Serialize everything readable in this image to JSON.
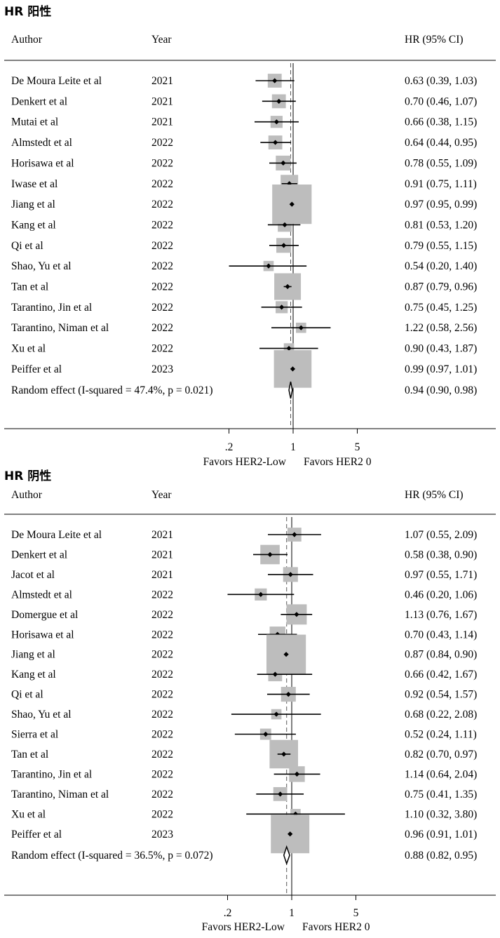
{
  "chart_data": [
    {
      "type": "forest",
      "title": "HR 阳性",
      "col_author": "Author",
      "col_year": "Year",
      "col_hr": "HR (95% CI)",
      "scale": "log",
      "xticks": [
        0.2,
        1,
        5
      ],
      "xtick_labels": [
        ".2",
        "1",
        "5"
      ],
      "favors_left": "Favors HER2-Low",
      "favors_right": "Favors HER2 0",
      "studies": [
        {
          "author": "De Moura Leite et al",
          "year": "2021",
          "hr": 0.63,
          "lo": 0.39,
          "hi": 1.03,
          "ci_text": "0.63 (0.39, 1.03)",
          "weight": 0.3
        },
        {
          "author": "Denkert et al",
          "year": "2021",
          "hr": 0.7,
          "lo": 0.46,
          "hi": 1.07,
          "ci_text": "0.70 (0.46, 1.07)",
          "weight": 0.3
        },
        {
          "author": "Mutai et al",
          "year": "2021",
          "hr": 0.66,
          "lo": 0.38,
          "hi": 1.15,
          "ci_text": "0.66 (0.38, 1.15)",
          "weight": 0.2
        },
        {
          "author": "Almstedt et al",
          "year": "2022",
          "hr": 0.64,
          "lo": 0.44,
          "hi": 0.95,
          "ci_text": "0.64 (0.44, 0.95)",
          "weight": 0.3
        },
        {
          "author": "Horisawa et al",
          "year": "2022",
          "hr": 0.78,
          "lo": 0.55,
          "hi": 1.09,
          "ci_text": "0.78 (0.55, 1.09)",
          "weight": 0.35
        },
        {
          "author": "Iwase et al",
          "year": "2022",
          "hr": 0.91,
          "lo": 0.75,
          "hi": 1.11,
          "ci_text": "0.91 (0.75, 1.11)",
          "weight": 0.5
        },
        {
          "author": "Jiang et al",
          "year": "2022",
          "hr": 0.97,
          "lo": 0.95,
          "hi": 0.99,
          "ci_text": "0.97 (0.95, 0.99)",
          "weight": 1.7
        },
        {
          "author": "Kang et al",
          "year": "2022",
          "hr": 0.81,
          "lo": 0.53,
          "hi": 1.2,
          "ci_text": "0.81 (0.53, 1.20)",
          "weight": 0.3
        },
        {
          "author": "Qi et al",
          "year": "2022",
          "hr": 0.79,
          "lo": 0.55,
          "hi": 1.15,
          "ci_text": "0.79 (0.55, 1.15)",
          "weight": 0.35
        },
        {
          "author": "Shao, Yu et al",
          "year": "2022",
          "hr": 0.54,
          "lo": 0.2,
          "hi": 1.4,
          "ci_text": "0.54 (0.20, 1.40)",
          "weight": 0.1
        },
        {
          "author": "Tan et al",
          "year": "2022",
          "hr": 0.87,
          "lo": 0.79,
          "hi": 0.96,
          "ci_text": "0.87 (0.79, 0.96)",
          "weight": 1.0
        },
        {
          "author": "Tarantino, Jin et al",
          "year": "2022",
          "hr": 0.75,
          "lo": 0.45,
          "hi": 1.25,
          "ci_text": "0.75 (0.45, 1.25)",
          "weight": 0.2
        },
        {
          "author": "Tarantino, Niman et al",
          "year": "2022",
          "hr": 1.22,
          "lo": 0.58,
          "hi": 2.56,
          "ci_text": "1.22 (0.58, 2.56)",
          "weight": 0.1
        },
        {
          "author": "Xu et al",
          "year": "2022",
          "hr": 0.9,
          "lo": 0.43,
          "hi": 1.87,
          "ci_text": "0.90 (0.43, 1.87)",
          "weight": 0.1
        },
        {
          "author": "Peiffer et al",
          "year": "2023",
          "hr": 0.99,
          "lo": 0.97,
          "hi": 1.01,
          "ci_text": "0.99 (0.97, 1.01)",
          "weight": 1.6
        }
      ],
      "pooled": {
        "label": "Random effect (I-squared = 47.4%, p = 0.021)",
        "hr": 0.94,
        "lo": 0.9,
        "hi": 0.98,
        "ci_text": "0.94 (0.90, 0.98)"
      }
    },
    {
      "type": "forest",
      "title": "HR 阴性",
      "col_author": "Author",
      "col_year": "Year",
      "col_hr": "HR (95% CI)",
      "scale": "log",
      "xticks": [
        0.2,
        1,
        5
      ],
      "xtick_labels": [
        ".2",
        "1",
        "5"
      ],
      "favors_left": "Favors HER2-Low",
      "favors_right": "Favors HER2 0",
      "studies": [
        {
          "author": "De Moura Leite et al",
          "year": "2021",
          "hr": 1.07,
          "lo": 0.55,
          "hi": 2.09,
          "ci_text": "1.07 (0.55, 2.09)",
          "weight": 0.3
        },
        {
          "author": "Denkert et al",
          "year": "2021",
          "hr": 0.58,
          "lo": 0.38,
          "hi": 0.9,
          "ci_text": "0.58 (0.38, 0.90)",
          "weight": 0.6
        },
        {
          "author": "Jacot et al",
          "year": "2021",
          "hr": 0.97,
          "lo": 0.55,
          "hi": 1.71,
          "ci_text": "0.97 (0.55, 1.71)",
          "weight": 0.35
        },
        {
          "author": "Almstedt et al",
          "year": "2022",
          "hr": 0.46,
          "lo": 0.2,
          "hi": 1.06,
          "ci_text": "0.46 (0.20, 1.06)",
          "weight": 0.2
        },
        {
          "author": "Domergue et al",
          "year": "2022",
          "hr": 1.13,
          "lo": 0.76,
          "hi": 1.67,
          "ci_text": "1.13 (0.76, 1.67)",
          "weight": 0.65
        },
        {
          "author": "Horisawa et al",
          "year": "2022",
          "hr": 0.7,
          "lo": 0.43,
          "hi": 1.14,
          "ci_text": "0.70 (0.43, 1.14)",
          "weight": 0.4
        },
        {
          "author": "Jiang et al",
          "year": "2022",
          "hr": 0.87,
          "lo": 0.84,
          "hi": 0.9,
          "ci_text": "0.87 (0.84, 0.90)",
          "weight": 1.7
        },
        {
          "author": "Kang et al",
          "year": "2022",
          "hr": 0.66,
          "lo": 0.42,
          "hi": 1.67,
          "ci_text": "0.66 (0.42, 1.67)",
          "weight": 0.3
        },
        {
          "author": "Qi et al",
          "year": "2022",
          "hr": 0.92,
          "lo": 0.54,
          "hi": 1.57,
          "ci_text": "0.92 (0.54, 1.57)",
          "weight": 0.35
        },
        {
          "author": "Shao, Yu et al",
          "year": "2022",
          "hr": 0.68,
          "lo": 0.22,
          "hi": 2.08,
          "ci_text": "0.68 (0.22, 2.08)",
          "weight": 0.1
        },
        {
          "author": "Sierra et al",
          "year": "2022",
          "hr": 0.52,
          "lo": 0.24,
          "hi": 1.11,
          "ci_text": "0.52 (0.24, 1.11)",
          "weight": 0.15
        },
        {
          "author": "Tan et al",
          "year": "2022",
          "hr": 0.82,
          "lo": 0.7,
          "hi": 0.97,
          "ci_text": "0.82 (0.70, 0.97)",
          "weight": 1.1
        },
        {
          "author": "Tarantino, Jin et al",
          "year": "2022",
          "hr": 1.14,
          "lo": 0.64,
          "hi": 2.04,
          "ci_text": "1.14 (0.64, 2.04)",
          "weight": 0.4
        },
        {
          "author": "Tarantino, Niman et al",
          "year": "2022",
          "hr": 0.75,
          "lo": 0.41,
          "hi": 1.35,
          "ci_text": "0.75 (0.41, 1.35)",
          "weight": 0.3
        },
        {
          "author": "Xu et al",
          "year": "2022",
          "hr": 1.1,
          "lo": 0.32,
          "hi": 3.8,
          "ci_text": "1.10 (0.32, 3.80)",
          "weight": 0.1
        },
        {
          "author": "Peiffer et al",
          "year": "2023",
          "hr": 0.96,
          "lo": 0.91,
          "hi": 1.01,
          "ci_text": "0.96 (0.91, 1.01)",
          "weight": 1.65
        }
      ],
      "pooled": {
        "label": "Random effect (I-squared = 36.5%, p = 0.072)",
        "hr": 0.88,
        "lo": 0.82,
        "hi": 0.95,
        "ci_text": "0.88 (0.82, 0.95)"
      }
    }
  ]
}
